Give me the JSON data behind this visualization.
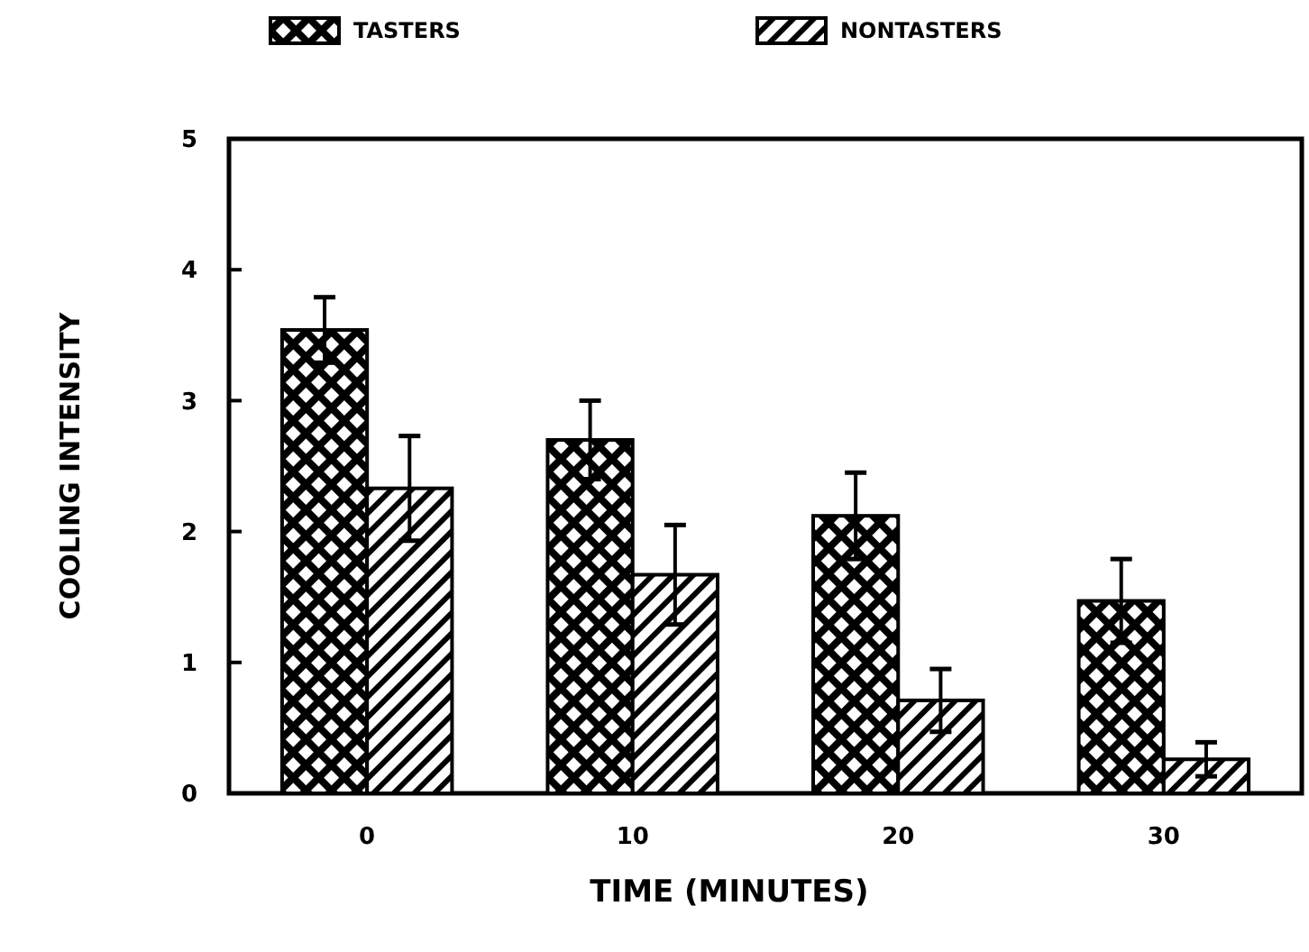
{
  "chart_data": {
    "type": "bar",
    "xlabel": "TIME  (MINUTES)",
    "ylabel": "COOLING  INTENSITY",
    "categories": [
      "0",
      "10",
      "20",
      "30"
    ],
    "series": [
      {
        "name": "TASTERS",
        "color": "#000000",
        "values": [
          3.54,
          2.7,
          2.12,
          1.47
        ],
        "errors": [
          0.25,
          0.3,
          0.33,
          0.32
        ]
      },
      {
        "name": "NONTASTERS",
        "color": "#000000",
        "values": [
          2.33,
          1.67,
          0.71,
          0.26
        ],
        "errors": [
          0.4,
          0.38,
          0.24,
          0.13
        ]
      }
    ],
    "ylim": [
      0,
      5
    ],
    "yticks": [
      0,
      1,
      2,
      3,
      4,
      5
    ],
    "legend": "top",
    "grid": false
  }
}
